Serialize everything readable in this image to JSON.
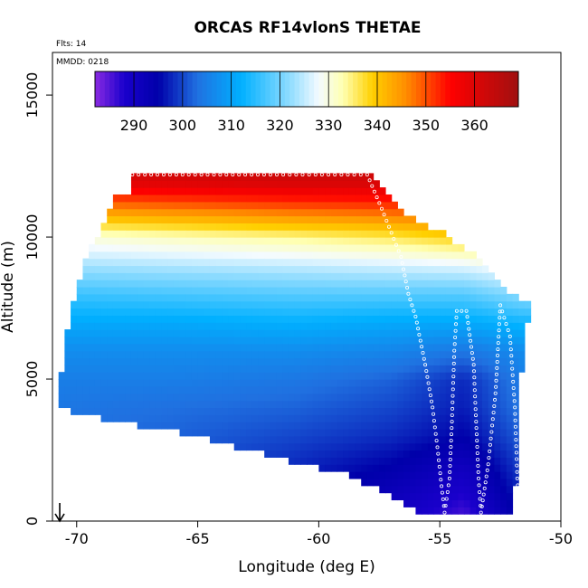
{
  "chart_data": {
    "type": "heatmap",
    "title": "ORCAS RF14vlonS THETAE",
    "annotations": {
      "flights": "Flts: 14",
      "date": "MMDD: 0218"
    },
    "xlabel": "Longitude (deg E)",
    "ylabel": "Altitude (m)",
    "xlim": [
      -71.0,
      -50.0
    ],
    "ylim": [
      0,
      16500
    ],
    "xticks": [
      -70,
      -65,
      -60,
      -55,
      -50
    ],
    "xtick_labels": [
      "-70",
      "-65",
      "-60",
      "-55",
      "-50"
    ],
    "yticks": [
      0,
      5000,
      10000,
      15000
    ],
    "ytick_labels": [
      "0",
      "5000",
      "10000",
      "15000"
    ],
    "colorbar": {
      "range": [
        282,
        369
      ],
      "ticks": [
        290,
        300,
        310,
        320,
        330,
        340,
        350,
        360
      ],
      "tick_labels": [
        "290",
        "300",
        "310",
        "320",
        "330",
        "340",
        "350",
        "360"
      ],
      "stops": [
        {
          "v": 282,
          "c": "#8a2be2"
        },
        {
          "v": 288,
          "c": "#1a00cc"
        },
        {
          "v": 295,
          "c": "#0000aa"
        },
        {
          "v": 303,
          "c": "#2070e0"
        },
        {
          "v": 312,
          "c": "#00b0ff"
        },
        {
          "v": 322,
          "c": "#8fdcff"
        },
        {
          "v": 328,
          "c": "#f4fbff"
        },
        {
          "v": 333,
          "c": "#ffffb0"
        },
        {
          "v": 339,
          "c": "#ffd000"
        },
        {
          "v": 346,
          "c": "#ff8c00"
        },
        {
          "v": 355,
          "c": "#ff0000"
        },
        {
          "v": 369,
          "c": "#a01010"
        }
      ]
    },
    "field": {
      "description": "Equivalent potential temperature (K) versus longitude and altitude",
      "top_boundary": [
        {
          "lon": -67.7,
          "alt": 12200
        },
        {
          "lon": -57.9,
          "alt": 12200
        },
        {
          "lon": -56.5,
          "alt": 10800
        },
        {
          "lon": -55.0,
          "alt": 10200
        },
        {
          "lon": -53.5,
          "alt": 9400
        },
        {
          "lon": -52.3,
          "alt": 8200
        },
        {
          "lon": -51.3,
          "alt": 7600
        }
      ],
      "west_boundary": [
        {
          "lon": -68.4,
          "alt": 11400
        },
        {
          "lon": -68.9,
          "alt": 10400
        },
        {
          "lon": -69.6,
          "alt": 9300
        },
        {
          "lon": -70.2,
          "alt": 7600
        },
        {
          "lon": -70.6,
          "alt": 5500
        },
        {
          "lon": -70.8,
          "alt": 4000
        }
      ],
      "bottom_boundary": [
        {
          "lon": -70.8,
          "alt": 4000
        },
        {
          "lon": -69.0,
          "alt": 3600
        },
        {
          "lon": -65.0,
          "alt": 3000
        },
        {
          "lon": -62.0,
          "alt": 2300
        },
        {
          "lon": -59.0,
          "alt": 1700
        },
        {
          "lon": -57.0,
          "alt": 900
        },
        {
          "lon": -55.5,
          "alt": 200
        }
      ],
      "east_boundary": [
        {
          "lon": -51.3,
          "alt": 7600
        },
        {
          "lon": -51.8,
          "alt": 4000
        },
        {
          "lon": -51.9,
          "alt": 200
        }
      ],
      "profiles": [
        {
          "alt": 12000,
          "theta": [
            360,
            361,
            362,
            362,
            362,
            362
          ]
        },
        {
          "alt": 11000,
          "theta": [
            345,
            347,
            349,
            350,
            351,
            352
          ]
        },
        {
          "alt": 10000,
          "theta": [
            330,
            332,
            334,
            336,
            339,
            342
          ]
        },
        {
          "alt": 9000,
          "theta": [
            323,
            324,
            325,
            326,
            327,
            330
          ]
        },
        {
          "alt": 8000,
          "theta": [
            316,
            317,
            318,
            318,
            318,
            322
          ]
        },
        {
          "alt": 7000,
          "theta": [
            311,
            311,
            312,
            311,
            311,
            313
          ]
        },
        {
          "alt": 6000,
          "theta": [
            307,
            307,
            307,
            306,
            304,
            307
          ]
        },
        {
          "alt": 5000,
          "theta": [
            305,
            305,
            304,
            302,
            298,
            305
          ]
        },
        {
          "alt": 4000,
          "theta": [
            304,
            303,
            302,
            300,
            297,
            304
          ]
        },
        {
          "alt": 3000,
          "theta": [
            303,
            302,
            300,
            298,
            295,
            302
          ]
        },
        {
          "alt": 2000,
          "theta": [
            302,
            301,
            298,
            295,
            291,
            300
          ]
        },
        {
          "alt": 1000,
          "theta": [
            301,
            300,
            296,
            292,
            288,
            298
          ]
        },
        {
          "alt": 0,
          "theta": [
            300,
            299,
            294,
            290,
            285,
            296
          ]
        }
      ],
      "profile_lons": [
        -71,
        -66,
        -61,
        -57,
        -54,
        -51.5
      ]
    },
    "flight_track": [
      {
        "lon": -67.7,
        "alt": 12200
      },
      {
        "lon": -62.0,
        "alt": 12200
      },
      {
        "lon": -58.0,
        "alt": 12200
      },
      {
        "lon": -57.4,
        "alt": 11000
      },
      {
        "lon": -56.6,
        "alt": 9300
      },
      {
        "lon": -56.3,
        "alt": 8000
      },
      {
        "lon": -56.0,
        "alt": 7200
      },
      {
        "lon": -55.6,
        "alt": 5500
      },
      {
        "lon": -55.3,
        "alt": 4000
      },
      {
        "lon": -55.1,
        "alt": 2600
      },
      {
        "lon": -54.9,
        "alt": 1000
      },
      {
        "lon": -54.8,
        "alt": 300
      },
      {
        "lon": -54.6,
        "alt": 1500
      },
      {
        "lon": -54.5,
        "alt": 3500
      },
      {
        "lon": -54.4,
        "alt": 6000
      },
      {
        "lon": -54.3,
        "alt": 7400
      },
      {
        "lon": -53.9,
        "alt": 7400
      },
      {
        "lon": -53.6,
        "alt": 5500
      },
      {
        "lon": -53.5,
        "alt": 3500
      },
      {
        "lon": -53.4,
        "alt": 1500
      },
      {
        "lon": -53.3,
        "alt": 300
      },
      {
        "lon": -53.0,
        "alt": 2000
      },
      {
        "lon": -52.7,
        "alt": 4500
      },
      {
        "lon": -52.5,
        "alt": 7600
      },
      {
        "lon": -52.1,
        "alt": 6500
      },
      {
        "lon": -51.9,
        "alt": 4000
      },
      {
        "lon": -51.8,
        "alt": 1500
      },
      {
        "lon": -51.7,
        "alt": 300
      }
    ],
    "marker": {
      "lon": -70.7,
      "alt": 500,
      "symbol": "down-arrow"
    }
  }
}
